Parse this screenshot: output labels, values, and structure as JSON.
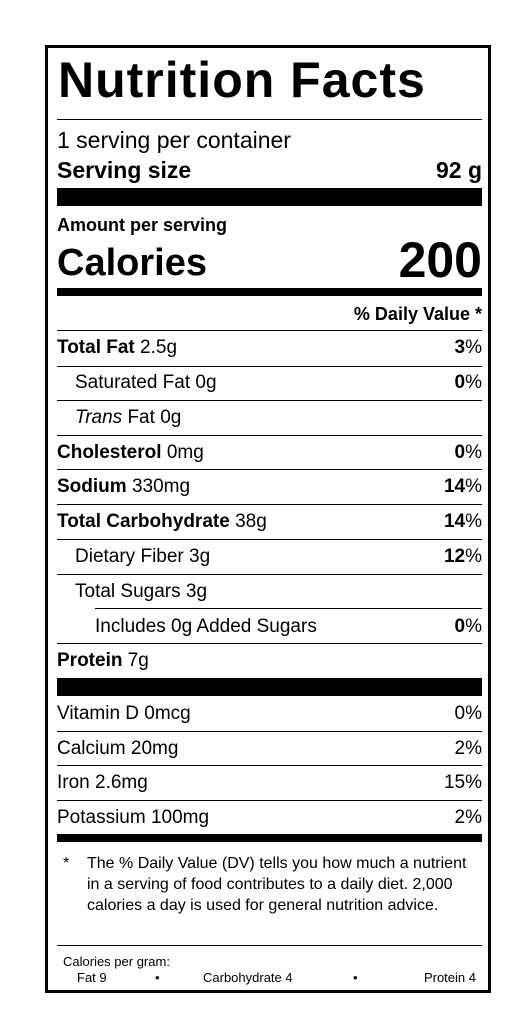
{
  "title": "Nutrition Facts",
  "servings_per_container": "1 serving per container",
  "serving_size": {
    "label": "Serving size",
    "value": "92 g"
  },
  "amount_per_serving": "Amount per serving",
  "calories": {
    "label": "Calories",
    "value": "200"
  },
  "daily_value_header": "% Daily Value *",
  "nutrients": [
    {
      "name": "Total Fat",
      "amount": "2.5g",
      "dv_num": "3",
      "dv_pct": "%"
    },
    {
      "name": "Saturated Fat",
      "amount": "0g",
      "dv_num": "0",
      "dv_pct": "%"
    },
    {
      "name_italic": "Trans",
      "name": "Fat",
      "amount": "0g"
    },
    {
      "name": "Cholesterol",
      "amount": "0mg",
      "dv_num": "0",
      "dv_pct": "%"
    },
    {
      "name": "Sodium",
      "amount": "330mg",
      "dv_num": "14",
      "dv_pct": "%"
    },
    {
      "name": "Total Carbohydrate",
      "amount": "38g",
      "dv_num": "14",
      "dv_pct": "%"
    },
    {
      "name": "Dietary Fiber",
      "amount": "3g",
      "dv_num": "12",
      "dv_pct": "%"
    },
    {
      "name": "Total Sugars",
      "amount": "3g"
    },
    {
      "text": "Includes 0g Added Sugars",
      "dv_num": "0",
      "dv_pct": "%"
    },
    {
      "name": "Protein",
      "amount": "7g"
    }
  ],
  "vitamins": [
    {
      "label": "Vitamin D 0mcg",
      "dv": "0%"
    },
    {
      "label": "Calcium 20mg",
      "dv": "2%"
    },
    {
      "label": "Iron 2.6mg",
      "dv": "15%"
    },
    {
      "label": "Potassium 100mg",
      "dv": "2%"
    }
  ],
  "footnote": {
    "star": "*",
    "text": "The % Daily Value (DV) tells you how much a nutrient in a serving of food contributes to a daily diet. 2,000 calories a day is used for general nutrition advice."
  },
  "calories_per_gram": {
    "heading": "Calories per gram:",
    "fat": "Fat 9",
    "bullet": "•",
    "carbohydrate": "Carbohydrate 4",
    "protein": "Protein 4"
  }
}
